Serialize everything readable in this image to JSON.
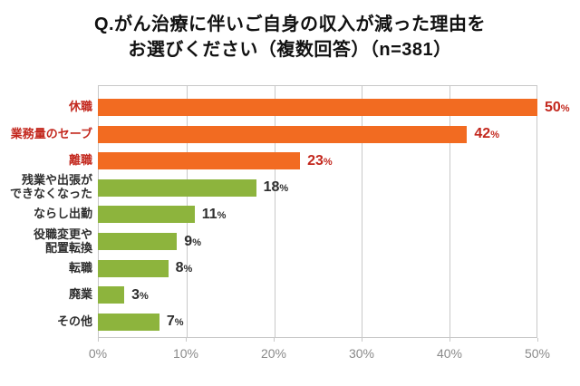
{
  "title": {
    "line1": "Q.がん治療に伴いご自身の収入が減った理由を",
    "line2": "お選びください（複数回答）（n=381）"
  },
  "colors": {
    "emphasis_bar": "#f26b21",
    "normal_bar": "#8db43d",
    "emphasis_text": "#c3281e",
    "normal_text": "#2e2e2e",
    "axis_text": "#8a8a8a",
    "grid_line": "#c8c8c8"
  },
  "chart_data": {
    "type": "bar",
    "orientation": "horizontal",
    "title": "Q.がん治療に伴いご自身の収入が減った理由をお選びください（複数回答）（n=381）",
    "sample_size_label": "n=381",
    "unit": "%",
    "xlim": [
      0,
      50
    ],
    "xticks": [
      "0%",
      "10%",
      "20%",
      "30%",
      "40%",
      "50%"
    ],
    "grid": true,
    "legend": false,
    "bars": [
      {
        "label": "休職",
        "value": 50,
        "emphasized": true
      },
      {
        "label": "業務量のセーブ",
        "value": 42,
        "emphasized": true
      },
      {
        "label": "離職",
        "value": 23,
        "emphasized": true
      },
      {
        "label": "残業や出張が\nできなくなった",
        "value": 18,
        "emphasized": false
      },
      {
        "label": "ならし出勤",
        "value": 11,
        "emphasized": false
      },
      {
        "label": "役職変更や\n配置転換",
        "value": 9,
        "emphasized": false
      },
      {
        "label": "転職",
        "value": 8,
        "emphasized": false
      },
      {
        "label": "廃業",
        "value": 3,
        "emphasized": false
      },
      {
        "label": "その他",
        "value": 7,
        "emphasized": false
      }
    ]
  }
}
